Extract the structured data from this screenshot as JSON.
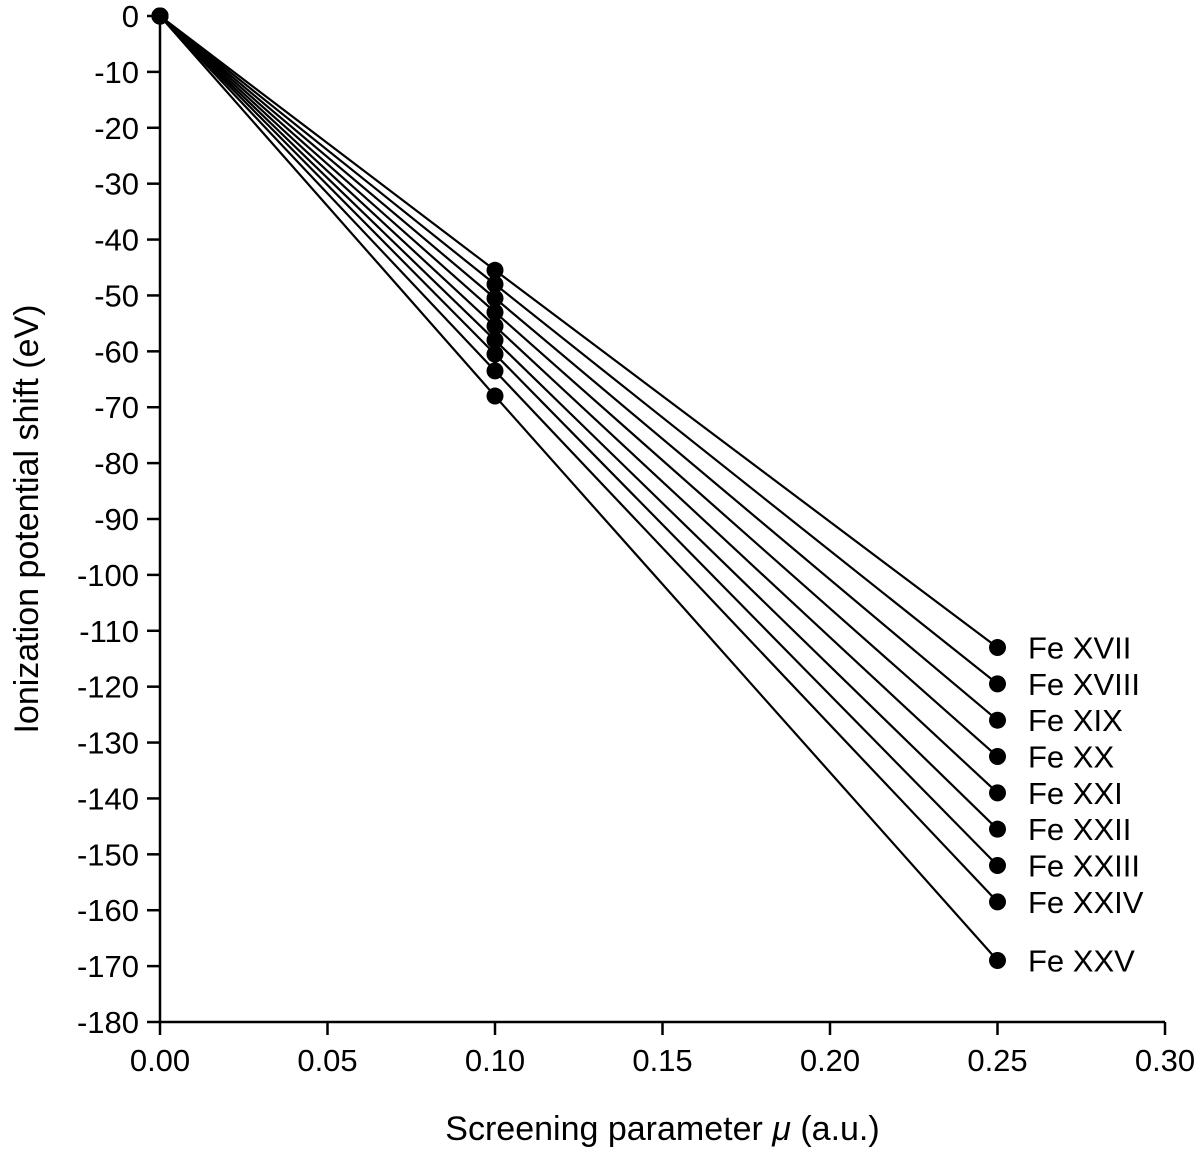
{
  "colors": {
    "foreground": "#000000",
    "background": "#ffffff"
  },
  "chart_data": {
    "type": "line",
    "x": [
      0.0,
      0.1,
      0.25
    ],
    "series": [
      {
        "name": "Fe XVII",
        "values": [
          0,
          -45.5,
          -113.0
        ]
      },
      {
        "name": "Fe XVIII",
        "values": [
          0,
          -48.0,
          -119.5
        ]
      },
      {
        "name": "Fe XIX",
        "values": [
          0,
          -50.5,
          -126.0
        ]
      },
      {
        "name": "Fe XX",
        "values": [
          0,
          -53.0,
          -132.5
        ]
      },
      {
        "name": "Fe XXI",
        "values": [
          0,
          -55.5,
          -139.0
        ]
      },
      {
        "name": "Fe XXII",
        "values": [
          0,
          -58.0,
          -145.5
        ]
      },
      {
        "name": "Fe XXIII",
        "values": [
          0,
          -60.5,
          -152.0
        ]
      },
      {
        "name": "Fe XXIV",
        "values": [
          0,
          -63.5,
          -158.5
        ]
      },
      {
        "name": "Fe XXV",
        "values": [
          0,
          -68.0,
          -169.0
        ]
      }
    ],
    "xlabel": "Screening parameter μ (a.u.)",
    "xlabel_parts": {
      "prefix": "Screening parameter ",
      "symbol": "μ",
      "suffix": " (a.u.)"
    },
    "ylabel": "Ionization potential shift (eV)",
    "xlim": [
      0.0,
      0.3
    ],
    "ylim": [
      -180,
      0
    ],
    "xticks": [
      0.0,
      0.05,
      0.1,
      0.15,
      0.2,
      0.25,
      0.3
    ],
    "xtick_labels": [
      "0.00",
      "0.05",
      "0.10",
      "0.15",
      "0.20",
      "0.25",
      "0.30"
    ],
    "yticks": [
      0,
      -10,
      -20,
      -30,
      -40,
      -50,
      -60,
      -70,
      -80,
      -90,
      -100,
      -110,
      -120,
      -130,
      -140,
      -150,
      -160,
      -170,
      -180
    ],
    "ytick_labels": [
      "0",
      "-10",
      "-20",
      "-30",
      "-40",
      "-50",
      "-60",
      "-70",
      "-80",
      "-90",
      "-100",
      "-110",
      "-120",
      "-130",
      "-140",
      "-150",
      "-160",
      "-170",
      "-180"
    ],
    "grid": false,
    "legend_position": "inline-right-of-last-point",
    "marker": "filled-circle"
  }
}
